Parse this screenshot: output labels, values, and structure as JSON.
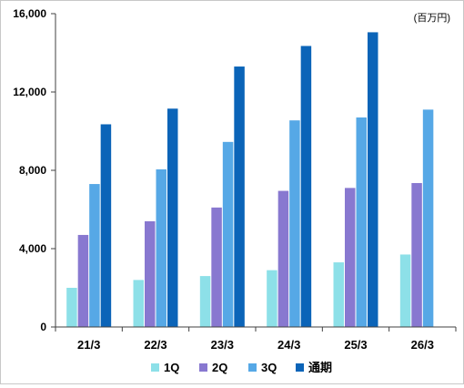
{
  "chart_data": {
    "type": "bar",
    "title": "",
    "xlabel": "",
    "ylabel": "",
    "unit_label": "(百万円)",
    "categories": [
      "21/3",
      "22/3",
      "23/3",
      "24/3",
      "25/3",
      "26/3"
    ],
    "ylim": [
      0,
      16000
    ],
    "yticks": [
      {
        "value": 0,
        "label": "0"
      },
      {
        "value": 4000,
        "label": "4,000"
      },
      {
        "value": 8000,
        "label": "8,000"
      },
      {
        "value": 12000,
        "label": "12,000"
      },
      {
        "value": 16000,
        "label": "16,000"
      }
    ],
    "grid": false,
    "legend_position": "bottom",
    "series": [
      {
        "name": "1Q",
        "color": "#8de0e8",
        "values": [
          2000,
          2400,
          2600,
          2900,
          3300,
          3700
        ]
      },
      {
        "name": "2Q",
        "color": "#8878d0",
        "values": [
          4700,
          5400,
          6100,
          6950,
          7100,
          7350
        ]
      },
      {
        "name": "3Q",
        "color": "#56a8e6",
        "values": [
          7300,
          8050,
          9450,
          10550,
          10700,
          11100
        ]
      },
      {
        "name": "通期",
        "color": "#0b64b8",
        "values": [
          10350,
          11150,
          13300,
          14350,
          15050,
          null
        ]
      }
    ]
  }
}
